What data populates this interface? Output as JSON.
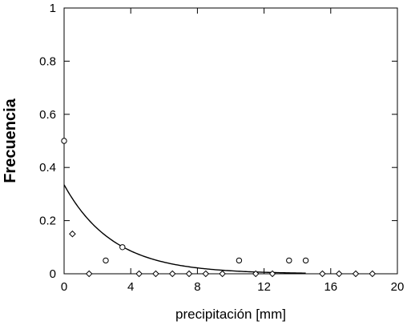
{
  "chart_data": {
    "type": "scatter",
    "title": "",
    "xlabel": "precipitación [mm]",
    "ylabel": "Frecuencia",
    "xlim": [
      0,
      20
    ],
    "ylim": [
      0,
      1
    ],
    "x_ticks": [
      0,
      4,
      8,
      12,
      16,
      20
    ],
    "y_ticks": [
      0,
      0.2,
      0.4,
      0.6,
      0.8,
      1
    ],
    "grid": false,
    "legend": "none",
    "colors": {
      "axes": "#000000",
      "marker": "#000000",
      "curve": "#000000",
      "background": "#ffffff"
    },
    "series": [
      {
        "kind": "points",
        "marker": "circle",
        "x": [
          0,
          2.5,
          3.5,
          10.5,
          13.5,
          14.5
        ],
        "y": [
          0.5,
          0.05,
          0.1,
          0.05,
          0.05,
          0.05
        ]
      },
      {
        "kind": "points",
        "marker": "diamond",
        "x": [
          0.5,
          1.5,
          4.5,
          5.5,
          6.5,
          7.5,
          8.5,
          9.5,
          11.5,
          12.5,
          15.5,
          16.5,
          17.5,
          18.5
        ],
        "y": [
          0.15,
          0,
          0,
          0,
          0,
          0,
          0,
          0,
          0,
          0,
          0,
          0,
          0,
          0
        ]
      },
      {
        "kind": "fit-curve",
        "function": "exponential",
        "a": 0.335,
        "b": 0.34,
        "x_range": [
          0,
          14.5
        ]
      }
    ]
  }
}
